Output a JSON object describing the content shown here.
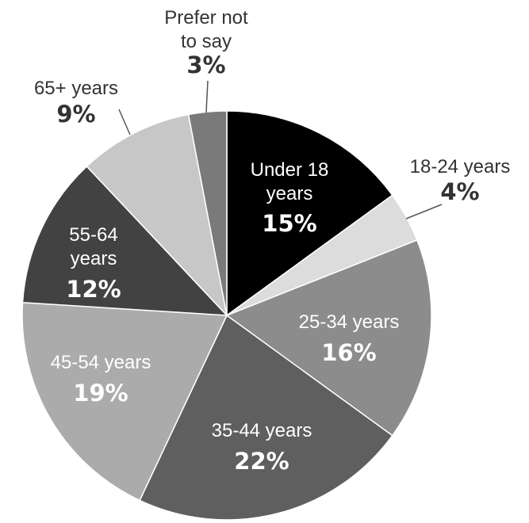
{
  "chart_data": {
    "type": "pie",
    "title": "",
    "start_angle_deg": 0,
    "direction": "clockwise",
    "slices": [
      {
        "label": [
          "Under 18",
          "years"
        ],
        "value": 15,
        "value_label": "15%",
        "color": "#000000",
        "text_color": "#ffffff",
        "placement": "inside"
      },
      {
        "label": [
          "18-24 years"
        ],
        "value": 4,
        "value_label": "4%",
        "color": "#dcdcdc",
        "text_color": "#333333",
        "placement": "outside"
      },
      {
        "label": [
          "25-34 years"
        ],
        "value": 16,
        "value_label": "16%",
        "color": "#8c8c8c",
        "text_color": "#ffffff",
        "placement": "inside"
      },
      {
        "label": [
          "35-44 years"
        ],
        "value": 22,
        "value_label": "22%",
        "color": "#5f5f5f",
        "text_color": "#ffffff",
        "placement": "inside"
      },
      {
        "label": [
          "45-54 years"
        ],
        "value": 19,
        "value_label": "19%",
        "color": "#ababab",
        "text_color": "#ffffff",
        "placement": "inside"
      },
      {
        "label": [
          "55-64",
          "years"
        ],
        "value": 12,
        "value_label": "12%",
        "color": "#424242",
        "text_color": "#ffffff",
        "placement": "inside"
      },
      {
        "label": [
          "65+ years"
        ],
        "value": 9,
        "value_label": "9%",
        "color": "#c7c7c7",
        "text_color": "#333333",
        "placement": "outside"
      },
      {
        "label": [
          "Prefer not",
          "to say"
        ],
        "value": 3,
        "value_label": "3%",
        "color": "#7a7a7a",
        "text_color": "#333333",
        "placement": "outside"
      }
    ]
  }
}
